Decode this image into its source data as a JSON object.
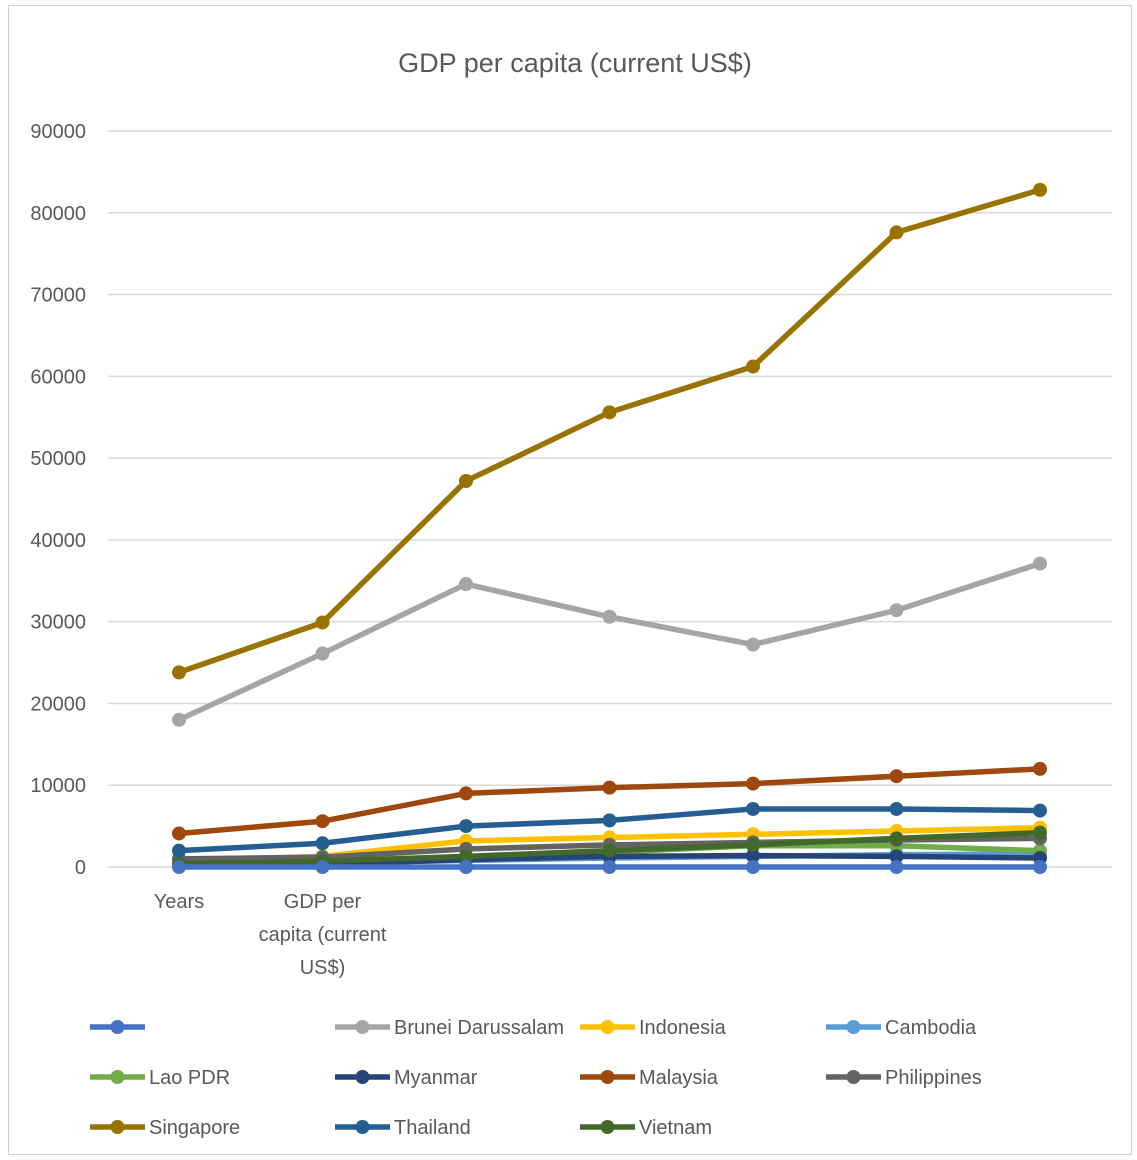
{
  "chart_data": {
    "type": "line",
    "title": "GDP per capita (current US$)",
    "xlabel": "",
    "ylabel": "",
    "categories": [
      "Years",
      "GDP per capita (current US$)",
      "",
      "",
      "",
      "",
      ""
    ],
    "ylim": [
      0,
      90000
    ],
    "yticks": [
      0,
      10000,
      20000,
      30000,
      40000,
      50000,
      60000,
      70000,
      80000,
      90000
    ],
    "grid": true,
    "legend_position": "bottom",
    "series": [
      {
        "name": "",
        "color": "#4472C4",
        "values": [
          0,
          0,
          0,
          0,
          0,
          0,
          0
        ]
      },
      {
        "name": "Brunei Darussalam",
        "color": "#A5A5A5",
        "values": [
          18000,
          26100,
          34600,
          30600,
          27200,
          31400,
          37100
        ]
      },
      {
        "name": "Indonesia",
        "color": "#FFC000",
        "values": [
          800,
          1300,
          3200,
          3600,
          4000,
          4400,
          4800
        ]
      },
      {
        "name": "Cambodia",
        "color": "#5B9BD5",
        "values": [
          300,
          500,
          800,
          1100,
          1300,
          1500,
          1600
        ]
      },
      {
        "name": "Lao PDR",
        "color": "#70AD47",
        "values": [
          300,
          500,
          1100,
          1800,
          2600,
          2600,
          2000
        ]
      },
      {
        "name": "Myanmar",
        "color": "#264478",
        "values": [
          150,
          300,
          900,
          1300,
          1400,
          1300,
          1100
        ]
      },
      {
        "name": "Malaysia",
        "color": "#9E480E",
        "values": [
          4100,
          5600,
          9000,
          9700,
          10200,
          11100,
          12000
        ]
      },
      {
        "name": "Philippines",
        "color": "#636363",
        "values": [
          1000,
          1200,
          2200,
          2700,
          3000,
          3300,
          3500
        ]
      },
      {
        "name": "Singapore",
        "color": "#997300",
        "values": [
          23800,
          29900,
          47200,
          55600,
          61200,
          77600,
          82800
        ]
      },
      {
        "name": "Thailand",
        "color": "#255E91",
        "values": [
          2000,
          2900,
          5000,
          5700,
          7100,
          7100,
          6900
        ]
      },
      {
        "name": "Vietnam",
        "color": "#43682B",
        "values": [
          400,
          700,
          1300,
          2000,
          2700,
          3500,
          4200
        ]
      }
    ]
  }
}
